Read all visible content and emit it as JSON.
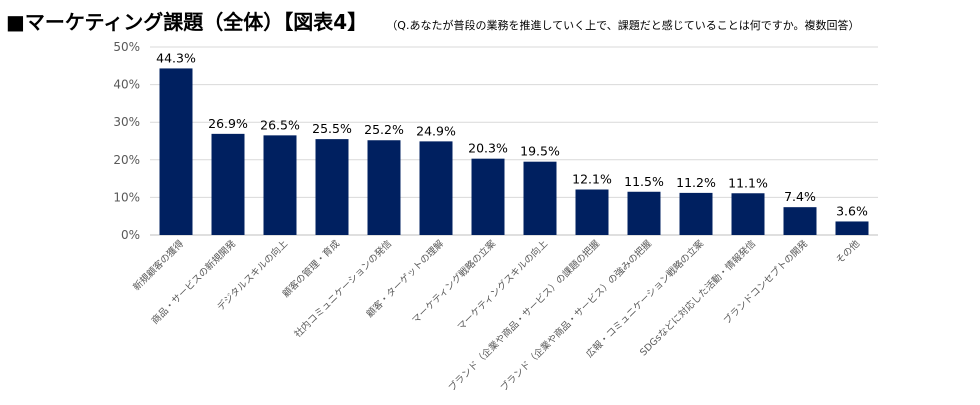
{
  "header": {
    "title": "■マーケティング課題（全体）【図表4】",
    "question": "（Q.あなたが普段の業務を推進していく上で、課題だと感じていることは何ですか。複数回答）"
  },
  "chart_data": {
    "type": "bar",
    "title": "■マーケティング課題（全体）【図表4】",
    "xlabel": "",
    "ylabel": "",
    "ylim": [
      0,
      50
    ],
    "yticks": [
      0,
      10,
      20,
      30,
      40,
      50
    ],
    "ytick_labels": [
      "0%",
      "10%",
      "20%",
      "30%",
      "40%",
      "50%"
    ],
    "grid": true,
    "legend": "none",
    "bar_color": "#002060",
    "categories": [
      "新規顧客の獲得",
      "商品・サービスの新規開発",
      "デジタルスキルの向上",
      "顧客の管理・育成",
      "社内コミュニケーションの発信",
      "顧客・ターゲットの理解",
      "マーケティング戦略の立案",
      "マーケティングスキルの向上",
      "ブランド（企業や商品・サービス）の課題の把握",
      "ブランド（企業や商品・サービス）の強みの把握",
      "広報・コミュニケーション戦略の立案",
      "SDGsなどに対応した活動・情報発信",
      "ブランドコンセプトの開発",
      "その他"
    ],
    "values": [
      44.3,
      26.9,
      26.5,
      25.5,
      25.2,
      24.9,
      20.3,
      19.5,
      12.1,
      11.5,
      11.2,
      11.1,
      7.4,
      3.6
    ],
    "data_labels": [
      "44.3%",
      "26.9%",
      "26.5%",
      "25.5%",
      "25.2%",
      "24.9%",
      "20.3%",
      "19.5%",
      "12.1%",
      "11.5%",
      "11.2%",
      "11.1%",
      "7.4%",
      "3.6%"
    ]
  }
}
